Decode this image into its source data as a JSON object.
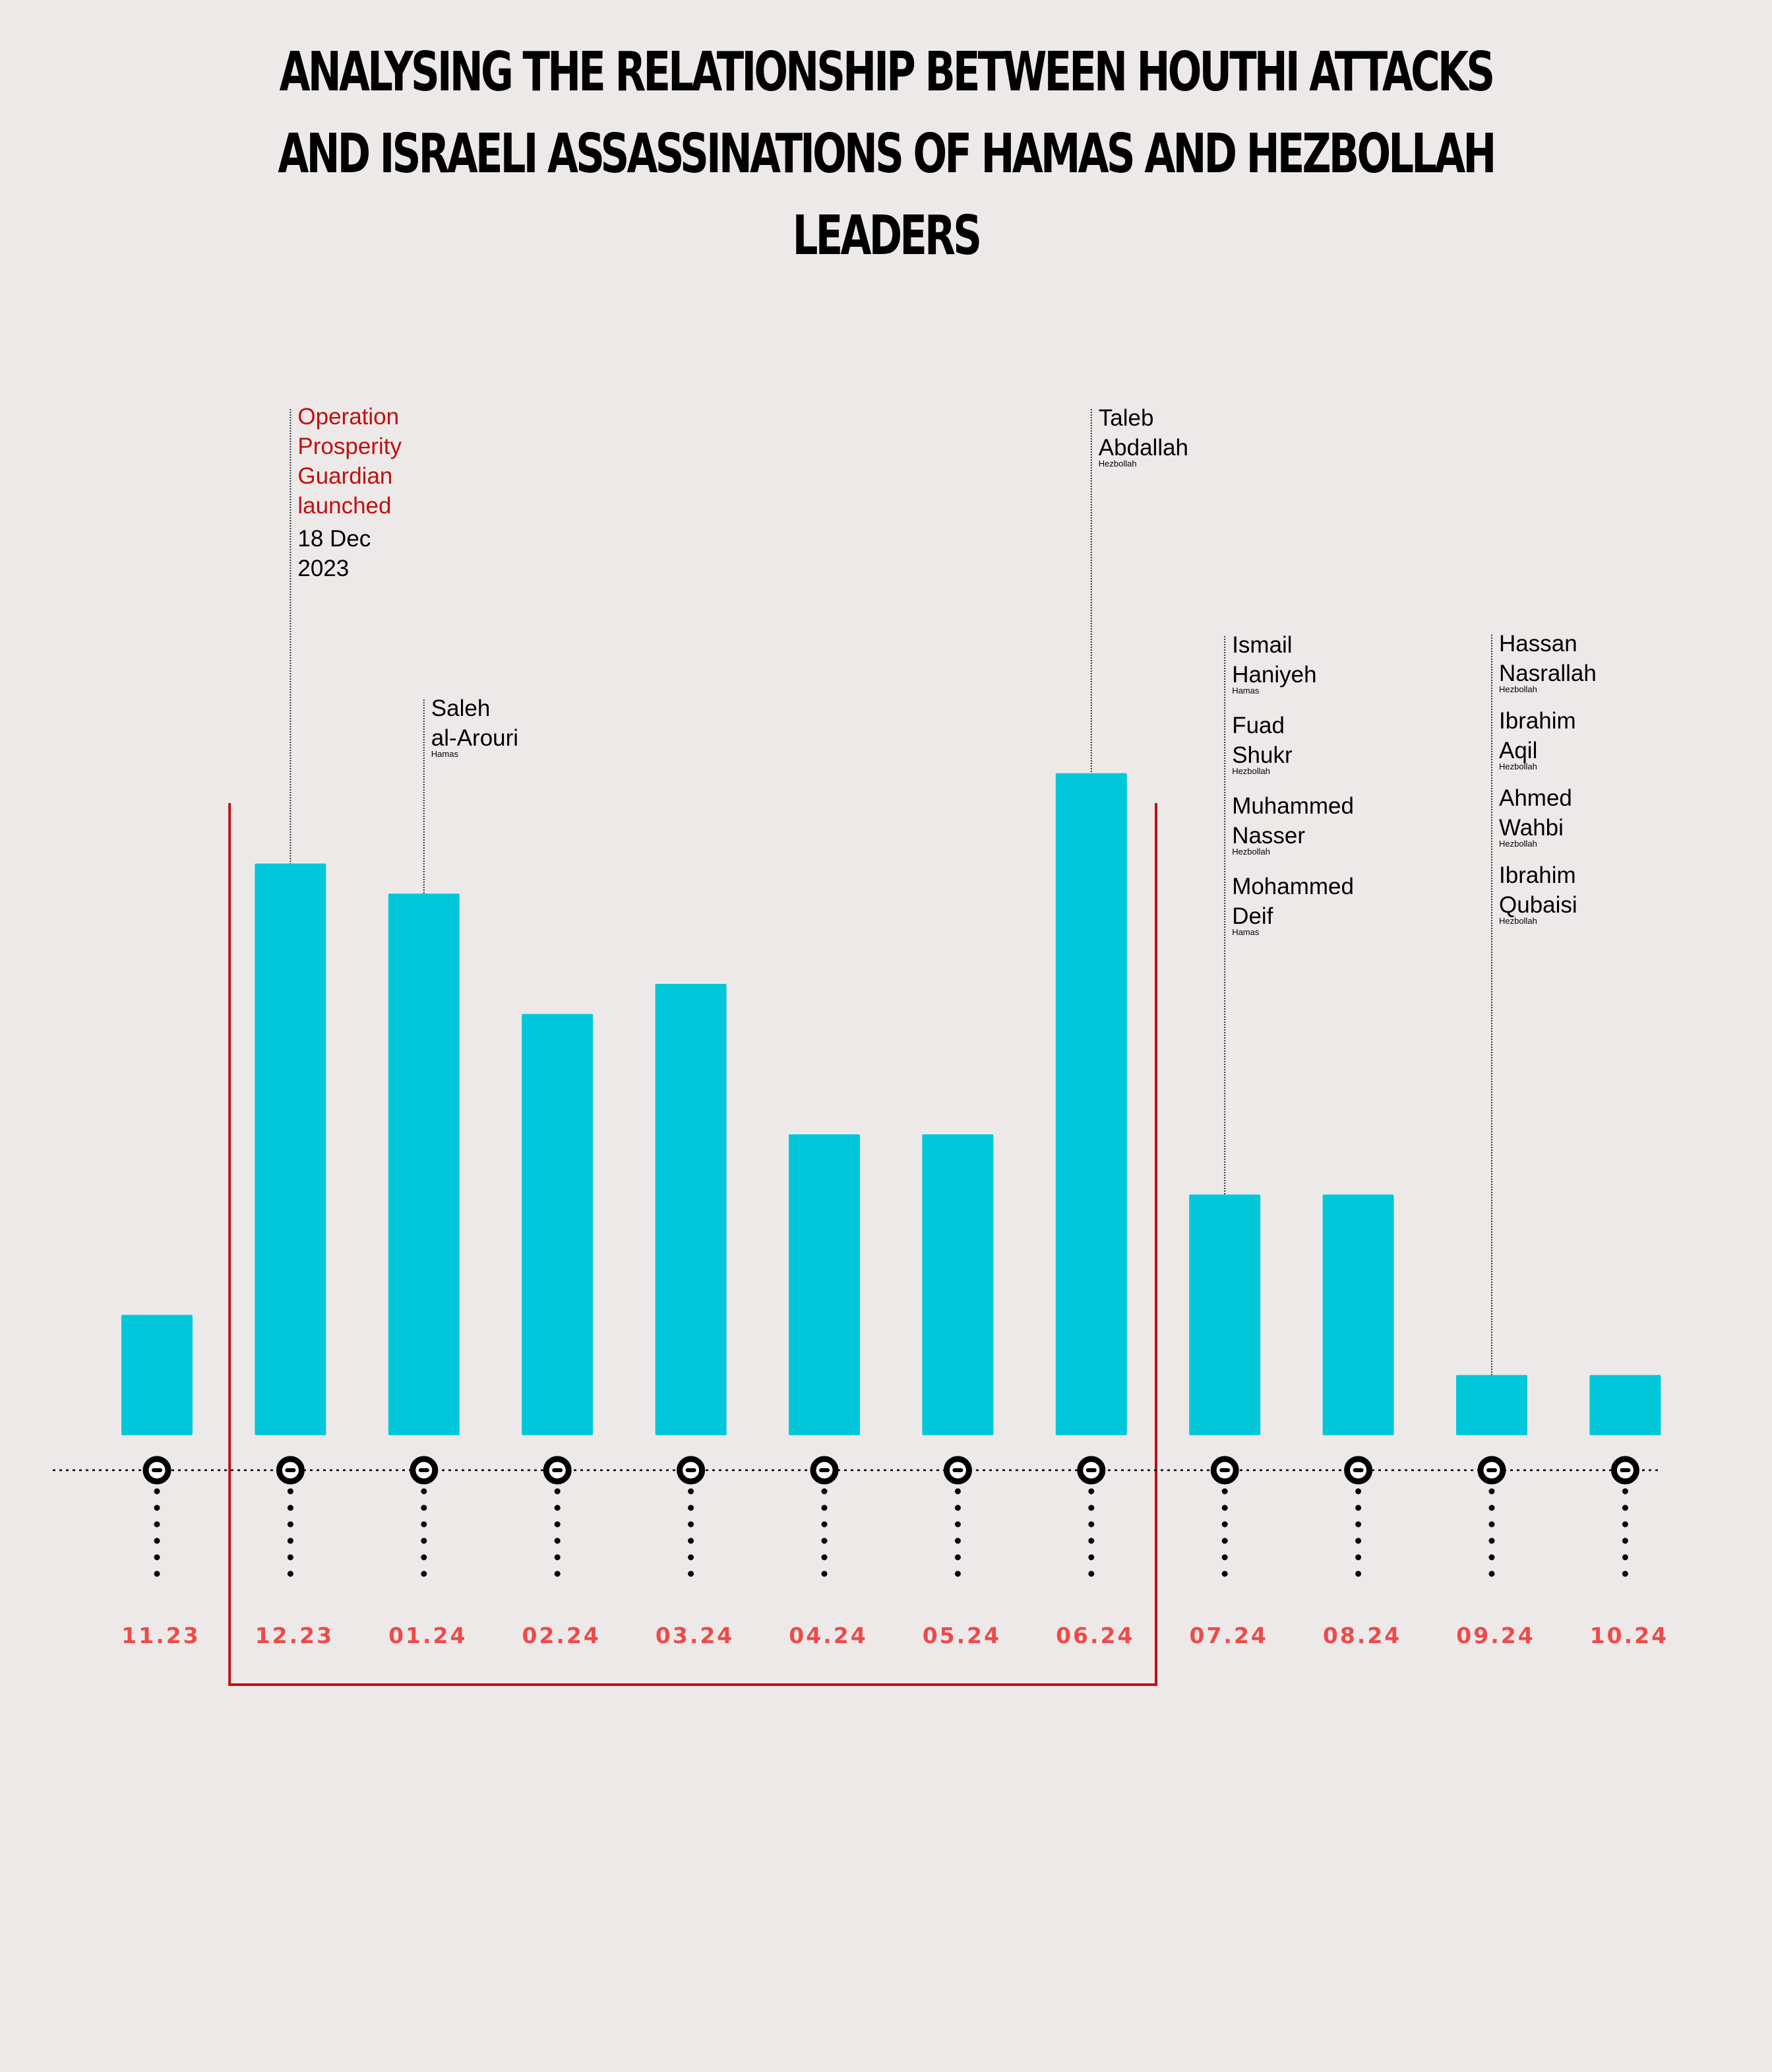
{
  "title": "ANALYSING THE RELATIONSHIP BETWEEN HOUTHI ATTACKS AND ISRAELI ASSASSINATIONS OF HAMAS AND HEZBOLLAH LEADERS",
  "colors": {
    "background": "#eee9e9",
    "bar": "#00c8da",
    "tick_label": "#ee4a4a",
    "highlight_box": "#c01010",
    "operation_text": "#c01010"
  },
  "chart_data": {
    "type": "bar",
    "title": "ANALYSING THE RELATIONSHIP BETWEEN HOUTHI ATTACKS AND ISRAELI ASSASSINATIONS OF HAMAS AND HEZBOLLAH LEADERS",
    "categories": [
      "11.23",
      "12.23",
      "01.24",
      "02.24",
      "03.24",
      "04.24",
      "05.24",
      "06.24",
      "07.24",
      "08.24",
      "09.24",
      "10.24"
    ],
    "values": [
      4,
      19,
      18,
      14,
      15,
      10,
      10,
      22,
      8,
      8,
      2,
      2
    ],
    "ylim": [
      0,
      24
    ],
    "y_axis_shown": false,
    "grid": false,
    "highlight_range": [
      "12.23",
      "06.24"
    ],
    "annotations": [
      {
        "category": "12.23",
        "kind": "operation",
        "lines": [
          "Operation",
          "Prosperity",
          "Guardian",
          "launched"
        ],
        "date_lines": [
          "18 Dec",
          "2023"
        ]
      },
      {
        "category": "01.24",
        "kind": "assassination",
        "people": [
          {
            "name": [
              "Saleh",
              "al-Arouri"
            ],
            "group": "Hamas"
          }
        ]
      },
      {
        "category": "06.24",
        "kind": "assassination",
        "people": [
          {
            "name": [
              "Taleb",
              "Abdallah"
            ],
            "group": "Hezbollah"
          }
        ]
      },
      {
        "category": "07.24",
        "kind": "assassination",
        "people": [
          {
            "name": [
              "Ismail",
              "Haniyeh"
            ],
            "group": "Hamas"
          },
          {
            "name": [
              "Fuad",
              "Shukr"
            ],
            "group": "Hezbollah"
          },
          {
            "name": [
              "Muhammed",
              "Nasser"
            ],
            "group": "Hezbollah"
          },
          {
            "name": [
              "Mohammed",
              "Deif"
            ],
            "group": "Hamas"
          }
        ]
      },
      {
        "category": "09.24",
        "kind": "assassination",
        "people": [
          {
            "name": [
              "Hassan",
              "Nasrallah"
            ],
            "group": "Hezbollah"
          },
          {
            "name": [
              "Ibrahim",
              "Aqil"
            ],
            "group": "Hezbollah"
          },
          {
            "name": [
              "Ahmed",
              "Wahbi"
            ],
            "group": "Hezbollah"
          },
          {
            "name": [
              "Ibrahim",
              "Qubaisi"
            ],
            "group": "Hezbollah"
          }
        ]
      }
    ]
  }
}
